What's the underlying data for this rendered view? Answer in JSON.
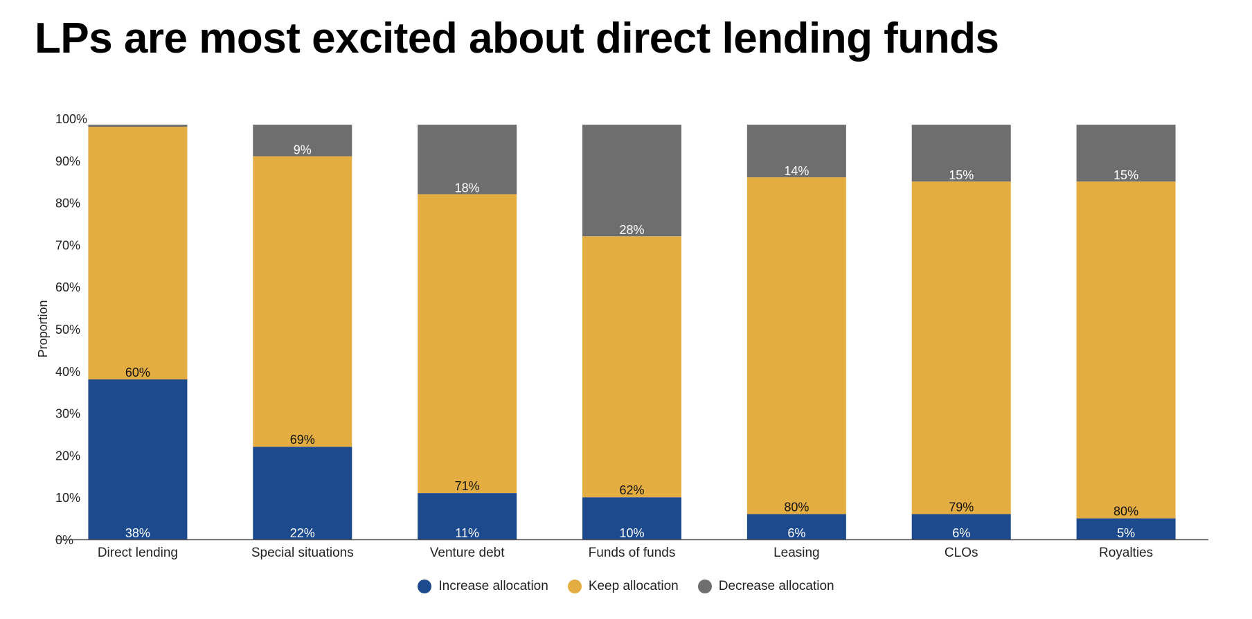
{
  "title": "LPs are most excited about direct lending funds",
  "colors": {
    "increase": "#1c4a8d",
    "keep": "#e4ad41",
    "decrease": "#6e6e6e",
    "axis": "#555555",
    "label_dark": "#111111",
    "label_light": "#ffffff"
  },
  "chart_data": {
    "type": "bar",
    "stacked": true,
    "ylabel": "Proportion",
    "xlabel": "",
    "ylim": [
      0,
      100
    ],
    "yticks": [
      "0%",
      "10%",
      "20%",
      "30%",
      "40%",
      "50%",
      "60%",
      "70%",
      "80%",
      "90%",
      "100%"
    ],
    "categories": [
      "Direct lending",
      "Special situations",
      "Venture debt",
      "Funds of funds",
      "Leasing",
      "CLOs",
      "Royalties"
    ],
    "series": [
      {
        "name": "Increase allocation",
        "values": [
          38,
          22,
          11,
          10,
          6,
          6,
          5
        ],
        "labels": [
          "38%",
          "22%",
          "11%",
          "10%",
          "6%",
          "6%",
          "5%"
        ]
      },
      {
        "name": "Keep allocation",
        "values": [
          60,
          69,
          71,
          62,
          80,
          79,
          80
        ],
        "labels": [
          "60%",
          "69%",
          "71%",
          "62%",
          "80%",
          "79%",
          "80%"
        ]
      },
      {
        "name": "Decrease allocation",
        "values": [
          2,
          9,
          18,
          28,
          14,
          15,
          15
        ],
        "labels": [
          "",
          "9%",
          "18%",
          "28%",
          "14%",
          "15%",
          "15%"
        ]
      }
    ],
    "legend_position": "bottom-center",
    "grid": false
  }
}
